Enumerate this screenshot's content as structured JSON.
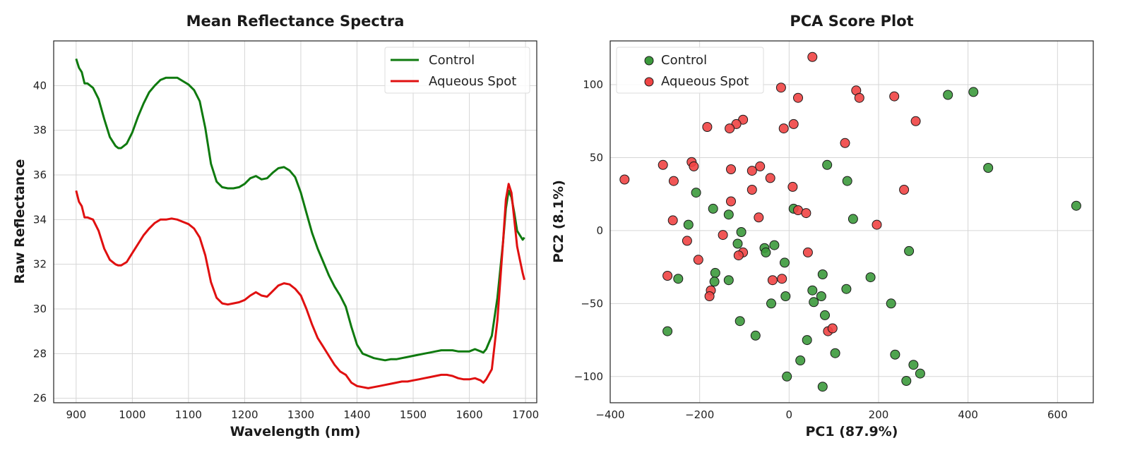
{
  "chart_data": [
    {
      "type": "line",
      "title": "Mean Reflectance Spectra",
      "xlabel": "Wavelength (nm)",
      "ylabel": "Raw Reflectance",
      "xlim": [
        860,
        1720
      ],
      "ylim": [
        25.8,
        42.0
      ],
      "xticks": [
        900,
        1000,
        1100,
        1200,
        1300,
        1400,
        1500,
        1600,
        1700
      ],
      "yticks": [
        26,
        28,
        30,
        32,
        34,
        36,
        38,
        40
      ],
      "grid": true,
      "legend_position": "top-right",
      "series": [
        {
          "name": "Control",
          "color": "#0f7a0f",
          "x": [
            900,
            905,
            910,
            915,
            920,
            930,
            940,
            950,
            960,
            970,
            975,
            980,
            990,
            1000,
            1010,
            1020,
            1030,
            1040,
            1050,
            1060,
            1070,
            1080,
            1090,
            1100,
            1110,
            1120,
            1130,
            1140,
            1150,
            1160,
            1170,
            1180,
            1190,
            1200,
            1210,
            1220,
            1230,
            1240,
            1250,
            1260,
            1270,
            1280,
            1290,
            1300,
            1310,
            1320,
            1330,
            1340,
            1350,
            1360,
            1370,
            1380,
            1390,
            1400,
            1410,
            1420,
            1430,
            1440,
            1450,
            1460,
            1470,
            1480,
            1490,
            1500,
            1510,
            1520,
            1530,
            1540,
            1550,
            1560,
            1570,
            1580,
            1590,
            1600,
            1610,
            1620,
            1625,
            1630,
            1640,
            1650,
            1660,
            1665,
            1670,
            1675,
            1680,
            1685,
            1690,
            1695,
            1698
          ],
          "values": [
            41.2,
            40.8,
            40.6,
            40.1,
            40.1,
            39.9,
            39.4,
            38.5,
            37.7,
            37.3,
            37.2,
            37.2,
            37.4,
            37.9,
            38.6,
            39.2,
            39.7,
            40.0,
            40.25,
            40.35,
            40.35,
            40.35,
            40.2,
            40.05,
            39.8,
            39.3,
            38.1,
            36.5,
            35.7,
            35.45,
            35.4,
            35.4,
            35.45,
            35.6,
            35.85,
            35.95,
            35.8,
            35.85,
            36.1,
            36.3,
            36.35,
            36.2,
            35.9,
            35.2,
            34.3,
            33.4,
            32.7,
            32.1,
            31.5,
            31.0,
            30.6,
            30.1,
            29.2,
            28.4,
            28.0,
            27.9,
            27.8,
            27.75,
            27.7,
            27.75,
            27.75,
            27.8,
            27.85,
            27.9,
            27.95,
            28.0,
            28.05,
            28.1,
            28.15,
            28.15,
            28.15,
            28.1,
            28.1,
            28.1,
            28.2,
            28.1,
            28.05,
            28.2,
            28.8,
            30.5,
            33.0,
            34.5,
            35.3,
            35.0,
            34.3,
            33.5,
            33.3,
            33.1,
            33.2
          ]
        },
        {
          "name": "Aqueous Spot",
          "color": "#e01010",
          "x": [
            900,
            905,
            910,
            915,
            920,
            930,
            940,
            950,
            960,
            970,
            975,
            980,
            990,
            1000,
            1010,
            1020,
            1030,
            1040,
            1050,
            1060,
            1070,
            1080,
            1090,
            1100,
            1110,
            1120,
            1130,
            1140,
            1150,
            1160,
            1170,
            1180,
            1190,
            1200,
            1210,
            1220,
            1230,
            1240,
            1250,
            1260,
            1270,
            1280,
            1290,
            1300,
            1310,
            1320,
            1330,
            1340,
            1350,
            1360,
            1370,
            1380,
            1390,
            1400,
            1410,
            1420,
            1430,
            1440,
            1450,
            1460,
            1470,
            1480,
            1490,
            1500,
            1510,
            1520,
            1530,
            1540,
            1550,
            1560,
            1570,
            1580,
            1590,
            1600,
            1610,
            1620,
            1625,
            1630,
            1640,
            1650,
            1660,
            1665,
            1670,
            1675,
            1680,
            1685,
            1690,
            1695,
            1698
          ],
          "values": [
            35.3,
            34.8,
            34.6,
            34.1,
            34.1,
            34.0,
            33.5,
            32.7,
            32.2,
            32.0,
            31.95,
            31.95,
            32.1,
            32.5,
            32.9,
            33.3,
            33.6,
            33.85,
            34.0,
            34.0,
            34.05,
            34.0,
            33.9,
            33.8,
            33.6,
            33.2,
            32.4,
            31.2,
            30.5,
            30.25,
            30.2,
            30.25,
            30.3,
            30.4,
            30.6,
            30.75,
            30.6,
            30.55,
            30.8,
            31.05,
            31.15,
            31.1,
            30.9,
            30.6,
            30.0,
            29.3,
            28.7,
            28.3,
            27.9,
            27.5,
            27.2,
            27.05,
            26.7,
            26.55,
            26.5,
            26.45,
            26.5,
            26.55,
            26.6,
            26.65,
            26.7,
            26.75,
            26.75,
            26.8,
            26.85,
            26.9,
            26.95,
            27.0,
            27.05,
            27.05,
            27.0,
            26.9,
            26.85,
            26.85,
            26.9,
            26.8,
            26.7,
            26.85,
            27.3,
            29.5,
            33.0,
            34.9,
            35.6,
            35.2,
            34.0,
            32.8,
            32.2,
            31.6,
            31.3
          ]
        }
      ]
    },
    {
      "type": "scatter",
      "title": "PCA Score Plot",
      "xlabel": "PC1 (87.9%)",
      "ylabel": "PC2 (8.1%)",
      "xlim": [
        -400,
        680
      ],
      "ylim": [
        -118,
        130
      ],
      "xticks": [
        -400,
        -200,
        0,
        200,
        400,
        600
      ],
      "yticks": [
        -100,
        -50,
        0,
        50,
        100
      ],
      "xtick_labels": [
        "−400",
        "−200",
        "0",
        "200",
        "400",
        "600"
      ],
      "ytick_labels": [
        "−100",
        "−50",
        "0",
        "50",
        "100"
      ],
      "grid": true,
      "legend_position": "top-left",
      "series": [
        {
          "name": "Control",
          "color": "#3c9a3c",
          "points": [
            [
              355,
              93
            ],
            [
              412,
              95
            ],
            [
              445,
              43
            ],
            [
              642,
              17
            ],
            [
              85,
              45
            ],
            [
              130,
              34
            ],
            [
              -208,
              26
            ],
            [
              -170,
              15
            ],
            [
              -135,
              11
            ],
            [
              10,
              15
            ],
            [
              143,
              8
            ],
            [
              -225,
              4
            ],
            [
              -107,
              -1
            ],
            [
              -115,
              -9
            ],
            [
              -55,
              -12
            ],
            [
              -33,
              -10
            ],
            [
              -52,
              -15
            ],
            [
              268,
              -14
            ],
            [
              -10,
              -22
            ],
            [
              -165,
              -29
            ],
            [
              75,
              -30
            ],
            [
              182,
              -32
            ],
            [
              -248,
              -33
            ],
            [
              -135,
              -34
            ],
            [
              -167,
              -35
            ],
            [
              128,
              -40
            ],
            [
              52,
              -41
            ],
            [
              -8,
              -45
            ],
            [
              72,
              -45
            ],
            [
              228,
              -50
            ],
            [
              -40,
              -50
            ],
            [
              55,
              -49
            ],
            [
              80,
              -58
            ],
            [
              -110,
              -62
            ],
            [
              -272,
              -69
            ],
            [
              -75,
              -72
            ],
            [
              40,
              -75
            ],
            [
              237,
              -85
            ],
            [
              103,
              -84
            ],
            [
              278,
              -92
            ],
            [
              25,
              -89
            ],
            [
              293,
              -98
            ],
            [
              -5,
              -100
            ],
            [
              262,
              -103
            ],
            [
              75,
              -107
            ]
          ]
        },
        {
          "name": "Aqueous Spot",
          "color": "#ef4444",
          "points": [
            [
              52,
              119
            ],
            [
              -18,
              98
            ],
            [
              150,
              96
            ],
            [
              235,
              92
            ],
            [
              20,
              91
            ],
            [
              157,
              91
            ],
            [
              -103,
              76
            ],
            [
              283,
              75
            ],
            [
              -118,
              73
            ],
            [
              10,
              73
            ],
            [
              -12,
              70
            ],
            [
              -183,
              71
            ],
            [
              -133,
              70
            ],
            [
              125,
              60
            ],
            [
              -282,
              45
            ],
            [
              -218,
              47
            ],
            [
              -213,
              44
            ],
            [
              -65,
              44
            ],
            [
              -130,
              42
            ],
            [
              -83,
              41
            ],
            [
              -368,
              35
            ],
            [
              -258,
              34
            ],
            [
              -42,
              36
            ],
            [
              8,
              30
            ],
            [
              257,
              28
            ],
            [
              -83,
              28
            ],
            [
              -130,
              20
            ],
            [
              20,
              14
            ],
            [
              38,
              12
            ],
            [
              -68,
              9
            ],
            [
              -260,
              7
            ],
            [
              196,
              4
            ],
            [
              -148,
              -3
            ],
            [
              -228,
              -7
            ],
            [
              -103,
              -15
            ],
            [
              -113,
              -17
            ],
            [
              42,
              -15
            ],
            [
              -203,
              -20
            ],
            [
              -272,
              -31
            ],
            [
              -175,
              -41
            ],
            [
              -178,
              -45
            ],
            [
              -37,
              -34
            ],
            [
              -16,
              -33
            ],
            [
              87,
              -69
            ],
            [
              97,
              -67
            ]
          ]
        }
      ]
    }
  ]
}
